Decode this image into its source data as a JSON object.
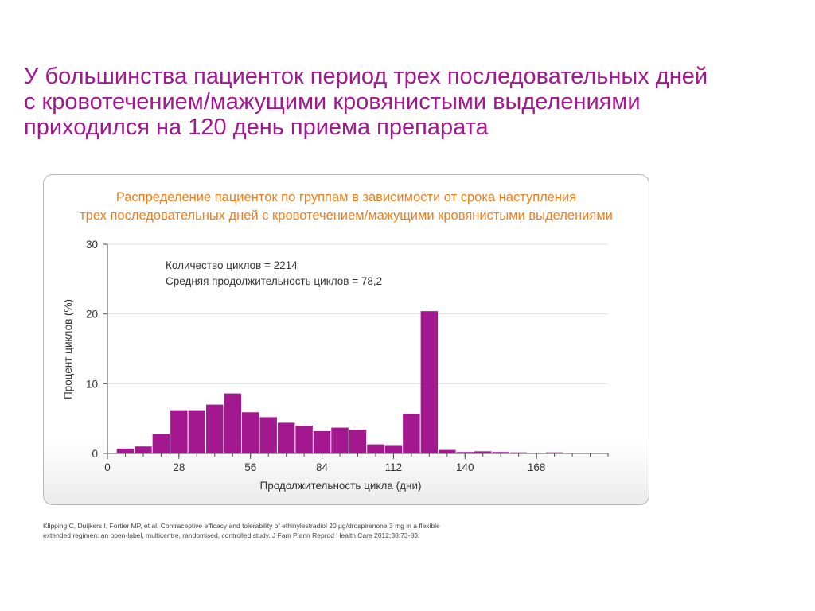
{
  "slide": {
    "title_lines": [
      "У большинства пациенток период трех последовательных дней",
      "с кровотечением/мажущими кровянистыми выделениями",
      "приходился на 120 день приема препарата"
    ]
  },
  "citation": {
    "lines": [
      "Klipping C, Duijkers I, Fortier MP, et al. Contraceptive efficacy and tolerability of ethinylestradiol 20 µg/drospirenone 3 mg in a flexible",
      "extended regimen: an open-label, multicentre, randomised, controlled study. J Fam Plann Reprod Health Care 2012;38:73-83."
    ]
  },
  "chart_data": {
    "type": "bar",
    "title_lines": [
      "Распределение пациенток по группам в зависимости от срока наступления",
      "трех последовательных дней с кровотечением/мажущими кровянистыми выделениями"
    ],
    "xlabel": "Продолжительность цикла (дни)",
    "ylabel": "Процент циклов (%)",
    "xlim": [
      0,
      196
    ],
    "ylim": [
      0,
      30
    ],
    "x_ticks": [
      0,
      28,
      56,
      84,
      112,
      140,
      168
    ],
    "y_ticks": [
      0,
      10,
      20,
      30
    ],
    "bin_width": 7,
    "bins": [
      {
        "start": 3.5,
        "value": 0.7
      },
      {
        "start": 10.5,
        "value": 1.0
      },
      {
        "start": 17.5,
        "value": 2.8
      },
      {
        "start": 24.5,
        "value": 6.2
      },
      {
        "start": 31.5,
        "value": 6.2
      },
      {
        "start": 38.5,
        "value": 7.0
      },
      {
        "start": 45.5,
        "value": 8.6
      },
      {
        "start": 52.5,
        "value": 5.9
      },
      {
        "start": 59.5,
        "value": 5.2
      },
      {
        "start": 66.5,
        "value": 4.4
      },
      {
        "start": 73.5,
        "value": 4.0
      },
      {
        "start": 80.5,
        "value": 3.2
      },
      {
        "start": 87.5,
        "value": 3.7
      },
      {
        "start": 94.5,
        "value": 3.4
      },
      {
        "start": 101.5,
        "value": 1.3
      },
      {
        "start": 108.5,
        "value": 1.2
      },
      {
        "start": 115.5,
        "value": 5.7
      },
      {
        "start": 122.5,
        "value": 20.4
      },
      {
        "start": 129.5,
        "value": 0.5
      },
      {
        "start": 136.5,
        "value": 0.2
      },
      {
        "start": 143.5,
        "value": 0.3
      },
      {
        "start": 150.5,
        "value": 0.2
      },
      {
        "start": 157.5,
        "value": 0.15
      },
      {
        "start": 164.5,
        "value": 0.05
      },
      {
        "start": 171.5,
        "value": 0.15
      }
    ],
    "annotations": [
      "Количество циклов = 2214",
      "Средняя продолжительность циклов = 78,2"
    ],
    "grid": true,
    "colors": {
      "bar": "#a3188f",
      "title": "#ef7d1a",
      "slide_title": "#a3188f"
    }
  }
}
